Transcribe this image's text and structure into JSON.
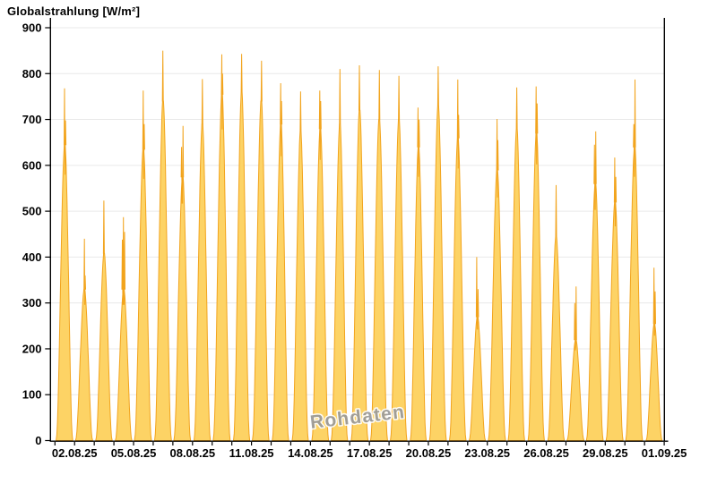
{
  "title": "Globalstrahlung [W/m²]",
  "watermark": "Rohdaten",
  "colors": {
    "area_fill": "#FDD365",
    "area_stroke": "#F2A41D",
    "grid": "#E9E9E9",
    "axis": "#000000",
    "watermark_fill": "#9A9A9A",
    "watermark_halo": "#FFFFFF",
    "background": "#FFFFFF"
  },
  "y_axis": {
    "min": 0,
    "max": 900,
    "step": 100,
    "tick_labels": [
      "0",
      "100",
      "200",
      "300",
      "400",
      "500",
      "600",
      "700",
      "800",
      "900"
    ]
  },
  "x_axis": {
    "tick_labels": [
      "02.08.25",
      "05.08.25",
      "08.08.25",
      "11.08.25",
      "14.08.25",
      "17.08.25",
      "20.08.25",
      "23.08.25",
      "26.08.25",
      "29.08.25",
      "01.09.25"
    ],
    "minor_tick_every_days": 1,
    "label_every_days": 3
  },
  "chart_data": {
    "type": "area",
    "title": "Globalstrahlung [W/m²]",
    "xlabel": "",
    "ylabel": "Globalstrahlung [W/m²]",
    "ylim": [
      0,
      900
    ],
    "grid": "horizontal",
    "legend": "none",
    "annotation": "Rohdaten",
    "x": [
      "01.08.25",
      "02.08.25",
      "03.08.25",
      "04.08.25",
      "05.08.25",
      "06.08.25",
      "07.08.25",
      "08.08.25",
      "09.08.25",
      "10.08.25",
      "11.08.25",
      "12.08.25",
      "13.08.25",
      "14.08.25",
      "15.08.25",
      "16.08.25",
      "17.08.25",
      "18.08.25",
      "19.08.25",
      "20.08.25",
      "21.08.25",
      "22.08.25",
      "23.08.25",
      "24.08.25",
      "25.08.25",
      "26.08.25",
      "27.08.25",
      "28.08.25",
      "29.08.25",
      "30.08.25",
      "31.08.25"
    ],
    "daily_max": [
      768,
      440,
      523,
      487,
      763,
      850,
      686,
      788,
      842,
      843,
      828,
      779,
      761,
      763,
      810,
      818,
      808,
      795,
      726,
      816,
      787,
      400,
      701,
      770,
      772,
      557,
      336,
      674,
      617,
      787,
      377
    ],
    "days": [
      {
        "date": "01.08.25",
        "max": 768,
        "body": 645,
        "spikes": [
          [
            -0.3,
            768
          ],
          [
            0.8,
            698
          ]
        ]
      },
      {
        "date": "02.08.25",
        "max": 440,
        "body": 330,
        "spikes": [
          [
            0,
            440
          ],
          [
            0.8,
            360
          ]
        ]
      },
      {
        "date": "03.08.25",
        "max": 523,
        "body": 408,
        "spikes": [
          [
            -0.2,
            523
          ]
        ]
      },
      {
        "date": "04.08.25",
        "max": 487,
        "body": 330,
        "spikes": [
          [
            -1.6,
            438
          ],
          [
            -0.4,
            487
          ],
          [
            0.9,
            455
          ]
        ]
      },
      {
        "date": "05.08.25",
        "max": 763,
        "body": 635,
        "spikes": [
          [
            -0.2,
            763
          ],
          [
            0.9,
            690
          ]
        ]
      },
      {
        "date": "06.08.25",
        "max": 850,
        "body": 740,
        "spikes": [
          [
            -0.2,
            850
          ]
        ]
      },
      {
        "date": "07.08.25",
        "max": 686,
        "body": 575,
        "spikes": [
          [
            -1.2,
            640
          ],
          [
            0.4,
            686
          ]
        ]
      },
      {
        "date": "08.08.25",
        "max": 788,
        "body": 690,
        "spikes": [
          [
            0,
            788
          ]
        ]
      },
      {
        "date": "09.08.25",
        "max": 842,
        "body": 755,
        "spikes": [
          [
            -0.2,
            842
          ],
          [
            0.6,
            800
          ]
        ]
      },
      {
        "date": "10.08.25",
        "max": 843,
        "body": 760,
        "spikes": [
          [
            0,
            843
          ]
        ]
      },
      {
        "date": "11.08.25",
        "max": 828,
        "body": 740,
        "spikes": [
          [
            0.2,
            828
          ]
        ]
      },
      {
        "date": "12.08.25",
        "max": 779,
        "body": 690,
        "spikes": [
          [
            -0.3,
            779
          ],
          [
            0.6,
            740
          ]
        ]
      },
      {
        "date": "13.08.25",
        "max": 761,
        "body": 675,
        "spikes": [
          [
            0,
            761
          ]
        ]
      },
      {
        "date": "14.08.25",
        "max": 763,
        "body": 680,
        "spikes": [
          [
            -0.5,
            763
          ],
          [
            0.5,
            740
          ]
        ]
      },
      {
        "date": "15.08.25",
        "max": 810,
        "body": 690,
        "spikes": [
          [
            0,
            810
          ]
        ]
      },
      {
        "date": "16.08.25",
        "max": 818,
        "body": 720,
        "spikes": [
          [
            -0.2,
            818
          ]
        ]
      },
      {
        "date": "17.08.25",
        "max": 808,
        "body": 700,
        "spikes": [
          [
            0.2,
            808
          ]
        ]
      },
      {
        "date": "18.08.25",
        "max": 795,
        "body": 700,
        "spikes": [
          [
            0,
            795
          ]
        ]
      },
      {
        "date": "19.08.25",
        "max": 726,
        "body": 640,
        "spikes": [
          [
            -0.6,
            726
          ],
          [
            0.6,
            700
          ]
        ]
      },
      {
        "date": "20.08.25",
        "max": 816,
        "body": 730,
        "spikes": [
          [
            0,
            816
          ]
        ]
      },
      {
        "date": "21.08.25",
        "max": 787,
        "body": 660,
        "spikes": [
          [
            0,
            787
          ],
          [
            0.9,
            710
          ]
        ]
      },
      {
        "date": "22.08.25",
        "max": 400,
        "body": 270,
        "spikes": [
          [
            -0.9,
            400
          ],
          [
            0.6,
            330
          ]
        ]
      },
      {
        "date": "23.08.25",
        "max": 701,
        "body": 590,
        "spikes": [
          [
            -0.1,
            701
          ],
          [
            0.8,
            655
          ]
        ]
      },
      {
        "date": "24.08.25",
        "max": 770,
        "body": 680,
        "spikes": [
          [
            0,
            770
          ]
        ]
      },
      {
        "date": "25.08.25",
        "max": 772,
        "body": 670,
        "spikes": [
          [
            -0.4,
            772
          ],
          [
            0.7,
            735
          ]
        ]
      },
      {
        "date": "26.08.25",
        "max": 557,
        "body": 445,
        "spikes": [
          [
            0,
            557
          ]
        ]
      },
      {
        "date": "27.08.25",
        "max": 336,
        "body": 220,
        "spikes": [
          [
            -1.1,
            300
          ],
          [
            0.4,
            336
          ]
        ]
      },
      {
        "date": "28.08.25",
        "max": 674,
        "body": 560,
        "spikes": [
          [
            -1.0,
            645
          ],
          [
            0.4,
            674
          ]
        ]
      },
      {
        "date": "29.08.25",
        "max": 617,
        "body": 520,
        "spikes": [
          [
            -0.4,
            617
          ],
          [
            0.8,
            575
          ]
        ]
      },
      {
        "date": "30.08.25",
        "max": 787,
        "body": 640,
        "spikes": [
          [
            -1.0,
            690
          ],
          [
            0.3,
            787
          ]
        ]
      },
      {
        "date": "31.08.25",
        "max": 377,
        "body": 255,
        "spikes": [
          [
            -0.4,
            377
          ],
          [
            0.9,
            325
          ]
        ]
      }
    ]
  }
}
